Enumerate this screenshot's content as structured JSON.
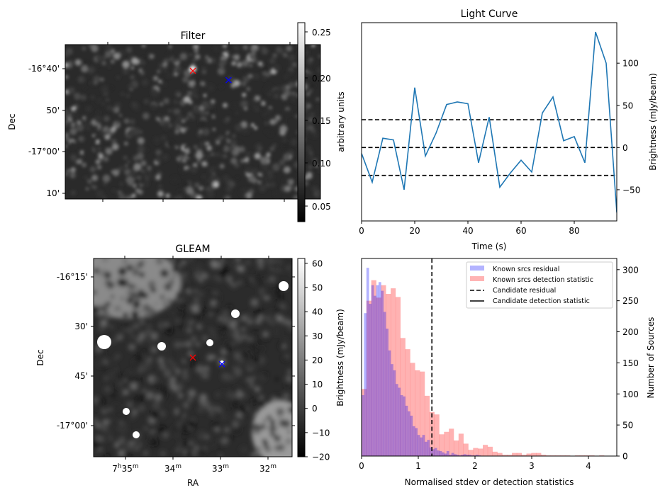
{
  "figure": {
    "panels": [
      "Filter",
      "Light Curve",
      "GLEAM",
      "Histogram"
    ]
  },
  "chart_data": [
    {
      "id": "filter",
      "type": "heatmap",
      "title": "Filter",
      "xlabel": "",
      "ylabel": "Dec",
      "yticks": [
        "-16°40'",
        "50'",
        "-17°00'",
        "10'"
      ],
      "colormap": "gray",
      "colorbar": {
        "label": "arbitrary units",
        "range": [
          0.03,
          0.265
        ],
        "ticks": [
          "0.05",
          "0.10",
          "0.15",
          "0.20",
          "0.25"
        ]
      },
      "markers": [
        {
          "name": "candidate",
          "symbol": "x",
          "color": "#ff0000",
          "fx": 0.5,
          "fy": 0.17
        },
        {
          "name": "reference",
          "symbol": "x",
          "color": "#0000ff",
          "fx": 0.64,
          "fy": 0.23
        }
      ]
    },
    {
      "id": "light_curve",
      "type": "line",
      "title": "Light Curve",
      "xlabel": "Time (s)",
      "ylabel": "Brightness (mJy/beam)",
      "left_ylabel": "arbitrary units",
      "xlim": [
        0,
        96
      ],
      "ylim": [
        -87,
        148
      ],
      "xticks": [
        0,
        20,
        40,
        60,
        80
      ],
      "yticks": [
        -50,
        0,
        50,
        100
      ],
      "x": [
        0,
        4,
        8,
        12,
        16,
        20,
        24,
        28,
        32,
        36,
        40,
        44,
        48,
        52,
        56,
        60,
        64,
        68,
        72,
        76,
        80,
        84,
        88,
        92,
        96
      ],
      "series": [
        {
          "name": "light curve",
          "color": "#1f77b4",
          "values": [
            -7,
            -41,
            11,
            9,
            -50,
            71,
            -10,
            17,
            51,
            54,
            52,
            -18,
            36,
            -47,
            -30,
            -15,
            -29,
            41,
            60,
            8,
            13,
            -18,
            137,
            100,
            -77
          ]
        }
      ],
      "hlines": [
        {
          "y": 33,
          "style": "dashed",
          "color": "#000000"
        },
        {
          "y": 0,
          "style": "dashed",
          "color": "#000000"
        },
        {
          "y": -33,
          "style": "dashed",
          "color": "#000000"
        }
      ]
    },
    {
      "id": "gleam",
      "type": "heatmap",
      "title": "GLEAM",
      "xlabel": "RA",
      "ylabel": "Dec",
      "xticks": [
        {
          "h": "7",
          "m": "35"
        },
        {
          "h": "",
          "m": "34"
        },
        {
          "h": "",
          "m": "33"
        },
        {
          "h": "",
          "m": "32"
        }
      ],
      "yticks": [
        "-16°15'",
        "30'",
        "45'",
        "-17°00'"
      ],
      "colormap": "gray",
      "colorbar": {
        "label": "Brightness (mJy/beam)",
        "range": [
          -20,
          62
        ],
        "ticks": [
          "60",
          "50",
          "40",
          "30",
          "20",
          "10",
          "0",
          "−10",
          "−20"
        ]
      },
      "markers": [
        {
          "name": "candidate",
          "symbol": "x",
          "color": "#ff0000",
          "fx": 0.5,
          "fy": 0.5
        },
        {
          "name": "reference",
          "symbol": "x",
          "color": "#0000ff",
          "fx": 0.647,
          "fy": 0.533
        }
      ]
    },
    {
      "id": "histogram",
      "type": "bar",
      "title": "",
      "xlabel": "Normalised stdev or detection statistics",
      "ylabel": "Number of Sources",
      "xlim": [
        0,
        4.5
      ],
      "ylim": [
        0,
        318
      ],
      "xticks": [
        0,
        1,
        2,
        3,
        4
      ],
      "yticks": [
        0,
        50,
        100,
        150,
        200,
        250,
        300
      ],
      "legend": {
        "position": "upper-right",
        "entries": [
          {
            "label": "Known srcs residual",
            "kind": "patch",
            "color": "#b3b3ff"
          },
          {
            "label": "Known srcs detection statistic",
            "kind": "patch",
            "color": "#ffb3b3"
          },
          {
            "label": "Candidate residual",
            "kind": "dashed",
            "color": "#000000"
          },
          {
            "label": "Candidate detection statistic",
            "kind": "solid",
            "color": "#000000"
          }
        ]
      },
      "vlines": [
        {
          "x": 1.24,
          "style": "dashed",
          "color": "#000000"
        }
      ],
      "series": [
        {
          "name": "Known srcs detection statistic",
          "color": "#ff0000",
          "alpha": 0.3,
          "bin_start": 0,
          "bin_width": 0.0855,
          "values": [
            108,
            250,
            283,
            255,
            275,
            261,
            270,
            256,
            190,
            172,
            150,
            138,
            136,
            97,
            71,
            67,
            35,
            39,
            44,
            25,
            36,
            20,
            10,
            13,
            12,
            18,
            15,
            7,
            5,
            2,
            2,
            5,
            5,
            2,
            4,
            5,
            5,
            2,
            1,
            1,
            1,
            1,
            1,
            0,
            1,
            1,
            1,
            1,
            0,
            1
          ]
        },
        {
          "name": "Known srcs residual",
          "color": "#0000ff",
          "alpha": 0.3,
          "bin_start": 0,
          "bin_width": 0.0428,
          "values": [
            98,
            230,
            303,
            245,
            275,
            258,
            275,
            280,
            266,
            232,
            205,
            170,
            148,
            138,
            116,
            110,
            98,
            96,
            81,
            72,
            65,
            48,
            45,
            34,
            30,
            34,
            23,
            26,
            14,
            11,
            13,
            9,
            8,
            6,
            4,
            8,
            2,
            5,
            3,
            2,
            1,
            2,
            3,
            2,
            2,
            1,
            1,
            2,
            1,
            0
          ]
        }
      ]
    }
  ]
}
